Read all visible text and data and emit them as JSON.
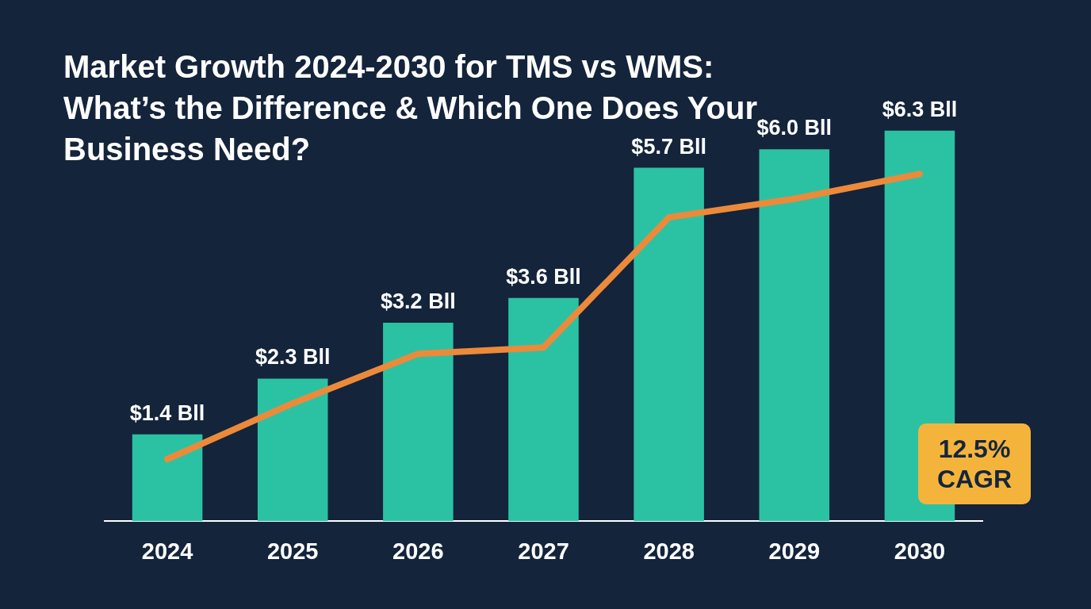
{
  "chart_data": {
    "type": "bar",
    "title": "Market Growth 2024-2030 for TMS vs WMS: What’s the Difference & Which One Does Your Business Need?",
    "categories": [
      "2024",
      "2025",
      "2026",
      "2027",
      "2028",
      "2029",
      "2030"
    ],
    "series": [
      {
        "color": "#2bc2a4",
        "values": [
          1.4,
          2.3,
          3.2,
          3.6,
          5.7,
          6.0,
          6.3
        ],
        "value_labels": [
          "$1.4 Bll",
          "$2.3 Bll",
          "$3.2 Bll",
          "$3.6 Bll",
          "$5.7 Bll",
          "$6.0 Bll",
          "$6.3 Bll"
        ]
      },
      {
        "type": "line",
        "color": "#ec8a3a",
        "values": [
          1.0,
          1.9,
          2.7,
          2.8,
          4.9,
          5.2,
          5.6
        ]
      }
    ],
    "annotations": [
      "12.5% CAGR"
    ]
  }
}
